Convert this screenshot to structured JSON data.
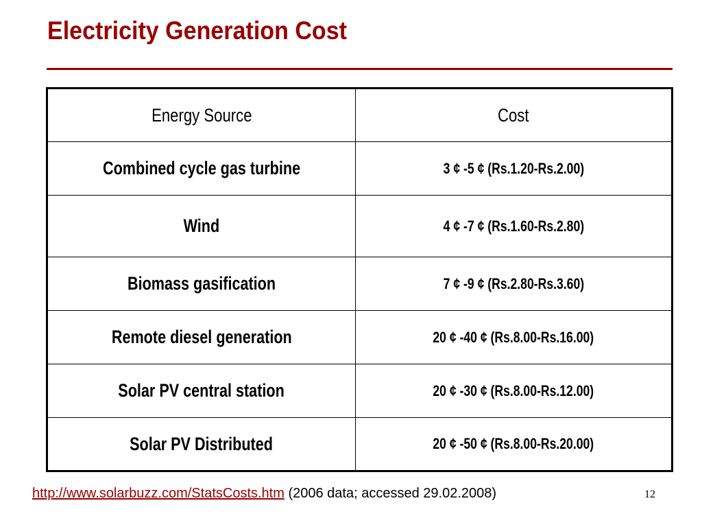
{
  "slide": {
    "title": "Electricity Generation Cost",
    "title_color": "#990000",
    "page_number": "12"
  },
  "table": {
    "headers": {
      "source": "Energy Source",
      "cost": "Cost"
    },
    "rows": [
      {
        "source": "Combined cycle gas turbine",
        "cost": "3 ¢ -5 ¢ (Rs.1.20-Rs.2.00)"
      },
      {
        "source": "Wind",
        "cost": "4 ¢ -7 ¢ (Rs.1.60-Rs.2.80)"
      },
      {
        "source": "Biomass gasification",
        "cost": "7 ¢ -9 ¢ (Rs.2.80-Rs.3.60)"
      },
      {
        "source": "Remote diesel generation",
        "cost": "20 ¢ -40 ¢ (Rs.8.00-Rs.16.00)"
      },
      {
        "source": "Solar PV central station",
        "cost": "20 ¢ -30 ¢ (Rs.8.00-Rs.12.00)"
      },
      {
        "source": "Solar PV Distributed",
        "cost": "20 ¢ -50 ¢ (Rs.8.00-Rs.20.00)"
      }
    ]
  },
  "footer": {
    "link_text": "http://www.solarbuzz.com/StatsCosts.htm",
    "note": "(2006 data; accessed 29.02.2008)"
  }
}
